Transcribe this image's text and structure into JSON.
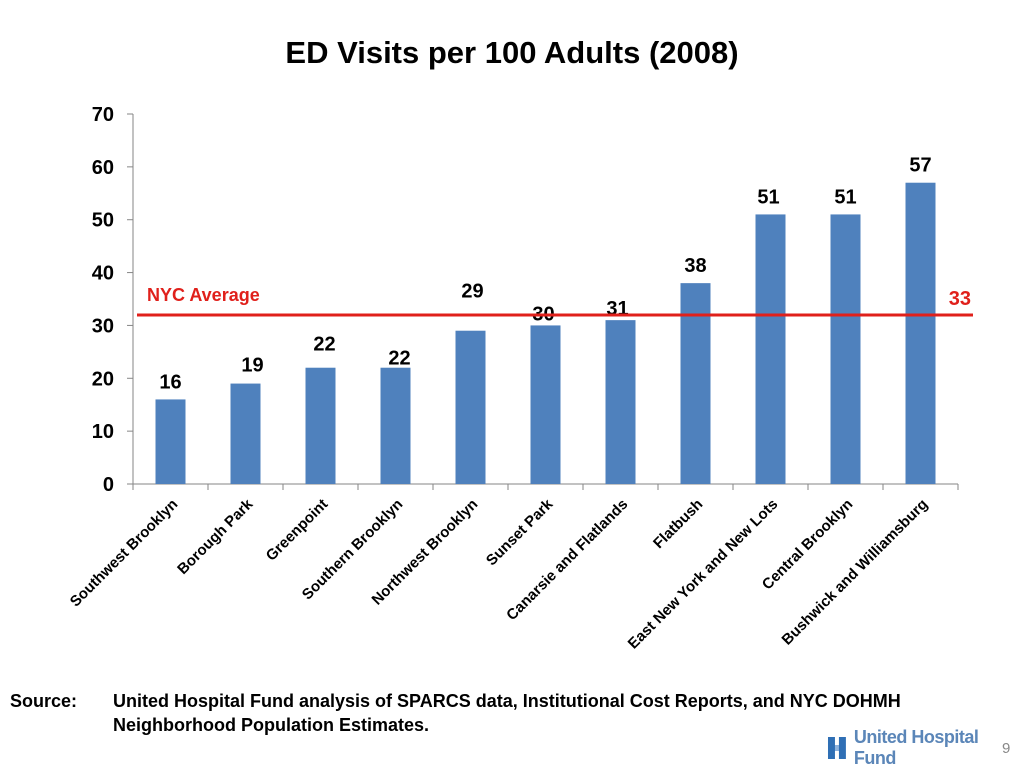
{
  "chart_data": {
    "type": "bar",
    "title": "ED Visits per 100 Adults (2008)",
    "categories": [
      "Southwest Brooklyn",
      "Borough Park",
      "Greenpoint",
      "Southern Brooklyn",
      "Northwest Brooklyn",
      "Sunset Park",
      "Canarsie and Flatlands",
      "Flatbush",
      "East New York and New Lots",
      "Central Brooklyn",
      "Bushwick and Williamsburg"
    ],
    "values": [
      16,
      19,
      22,
      22,
      29,
      30,
      31,
      38,
      51,
      51,
      57
    ],
    "value_labels": [
      "16",
      "19",
      "22",
      "22",
      "29",
      "30",
      "31",
      "38",
      "51",
      "51",
      "57"
    ],
    "ylim": [
      0,
      70
    ],
    "yticks": [
      0,
      10,
      20,
      30,
      40,
      50,
      60,
      70
    ],
    "ytick_labels": [
      "0",
      "10",
      "20",
      "30",
      "40",
      "50",
      "60",
      "70"
    ],
    "bar_color": "#4f81bd",
    "reference_line": {
      "label": "NYC Average",
      "value": 33,
      "value_label": "33",
      "color": "#e0201b"
    },
    "grid": false,
    "legend": "none"
  },
  "source": {
    "label": "Source:",
    "text": "United Hospital Fund analysis of SPARCS data, Institutional Cost Reports, and NYC DOHMH Neighborhood Population Estimates."
  },
  "logo": {
    "text": "United Hospital Fund",
    "icon": "uhf-logo-icon"
  },
  "page_number": "9"
}
